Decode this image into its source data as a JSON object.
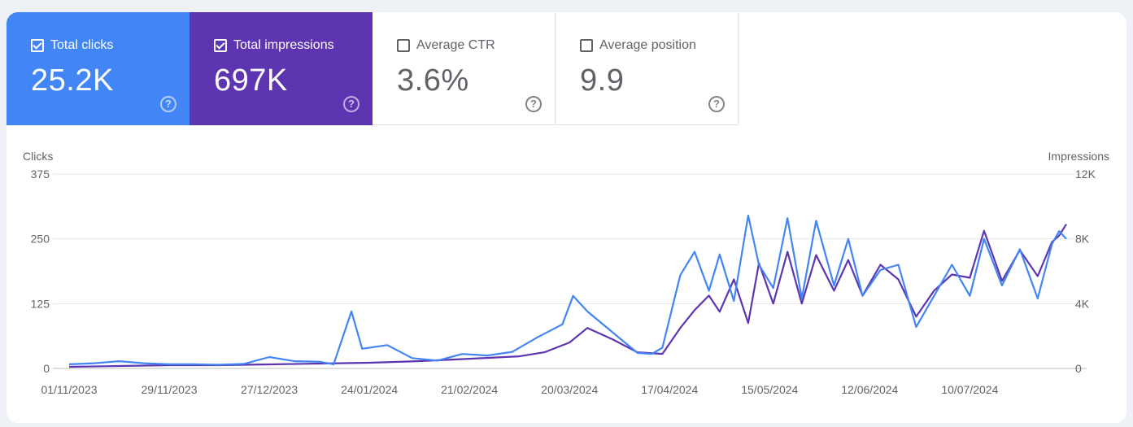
{
  "metrics": {
    "clicks": {
      "label": "Total clicks",
      "value": "25.2K",
      "checked": true
    },
    "impressions": {
      "label": "Total impressions",
      "value": "697K",
      "checked": true
    },
    "ctr": {
      "label": "Average CTR",
      "value": "3.6%",
      "checked": false
    },
    "position": {
      "label": "Average position",
      "value": "9.9",
      "checked": false
    }
  },
  "help_glyph": "?",
  "colors": {
    "clicks": "#4285f4",
    "impressions": "#5e35b1",
    "grid": "#e6e6e6",
    "text": "#5f6368"
  },
  "chart_data": {
    "type": "line",
    "title": "",
    "ylabel_left": "Clicks",
    "ylabel_right": "Impressions",
    "left_axis": {
      "ticks": [
        "0",
        "125",
        "250",
        "375"
      ],
      "values": [
        0,
        125,
        250,
        375
      ],
      "ylim": [
        0,
        375
      ]
    },
    "right_axis": {
      "ticks": [
        "0",
        "4K",
        "8K",
        "12K"
      ],
      "values": [
        0,
        4000,
        8000,
        12000
      ],
      "ylim": [
        0,
        12000
      ]
    },
    "x_ticks": [
      "01/11/2023",
      "29/11/2023",
      "27/12/2023",
      "24/01/2024",
      "21/02/2024",
      "20/03/2024",
      "17/04/2024",
      "15/05/2024",
      "12/06/2024",
      "10/07/2024"
    ],
    "x_start": "01/11/2023",
    "x_end": "06/08/2024",
    "grid": true,
    "series": [
      {
        "name": "Clicks",
        "axis": "left",
        "points": [
          [
            "01/11/2023",
            8
          ],
          [
            "08/11/2023",
            10
          ],
          [
            "15/11/2023",
            14
          ],
          [
            "22/11/2023",
            10
          ],
          [
            "29/11/2023",
            8
          ],
          [
            "06/12/2023",
            8
          ],
          [
            "13/12/2023",
            7
          ],
          [
            "20/12/2023",
            9
          ],
          [
            "27/12/2023",
            22
          ],
          [
            "03/01/2024",
            14
          ],
          [
            "10/01/2024",
            13
          ],
          [
            "14/01/2024",
            8
          ],
          [
            "19/01/2024",
            110
          ],
          [
            "22/01/2024",
            38
          ],
          [
            "29/01/2024",
            45
          ],
          [
            "05/02/2024",
            20
          ],
          [
            "12/02/2024",
            15
          ],
          [
            "19/02/2024",
            28
          ],
          [
            "26/02/2024",
            25
          ],
          [
            "04/03/2024",
            32
          ],
          [
            "11/03/2024",
            60
          ],
          [
            "18/03/2024",
            85
          ],
          [
            "21/03/2024",
            140
          ],
          [
            "25/03/2024",
            110
          ],
          [
            "01/04/2024",
            70
          ],
          [
            "08/04/2024",
            30
          ],
          [
            "12/04/2024",
            28
          ],
          [
            "15/04/2024",
            40
          ],
          [
            "20/04/2024",
            180
          ],
          [
            "24/04/2024",
            225
          ],
          [
            "28/04/2024",
            150
          ],
          [
            "01/05/2024",
            220
          ],
          [
            "05/05/2024",
            130
          ],
          [
            "09/05/2024",
            295
          ],
          [
            "12/05/2024",
            200
          ],
          [
            "16/05/2024",
            155
          ],
          [
            "20/05/2024",
            290
          ],
          [
            "24/05/2024",
            135
          ],
          [
            "28/05/2024",
            285
          ],
          [
            "02/06/2024",
            160
          ],
          [
            "06/06/2024",
            250
          ],
          [
            "10/06/2024",
            140
          ],
          [
            "15/06/2024",
            190
          ],
          [
            "20/06/2024",
            200
          ],
          [
            "25/06/2024",
            80
          ],
          [
            "30/06/2024",
            140
          ],
          [
            "05/07/2024",
            200
          ],
          [
            "10/07/2024",
            140
          ],
          [
            "14/07/2024",
            250
          ],
          [
            "19/07/2024",
            160
          ],
          [
            "24/07/2024",
            230
          ],
          [
            "29/07/2024",
            135
          ],
          [
            "02/08/2024",
            240
          ],
          [
            "04/08/2024",
            265
          ],
          [
            "06/08/2024",
            250
          ]
        ]
      },
      {
        "name": "Impressions",
        "axis": "right",
        "points": [
          [
            "01/11/2023",
            100
          ],
          [
            "15/11/2023",
            150
          ],
          [
            "29/11/2023",
            200
          ],
          [
            "13/12/2023",
            200
          ],
          [
            "27/12/2023",
            250
          ],
          [
            "10/01/2024",
            300
          ],
          [
            "24/01/2024",
            350
          ],
          [
            "07/02/2024",
            450
          ],
          [
            "21/02/2024",
            600
          ],
          [
            "06/03/2024",
            750
          ],
          [
            "13/03/2024",
            1000
          ],
          [
            "20/03/2024",
            1600
          ],
          [
            "25/03/2024",
            2500
          ],
          [
            "01/04/2024",
            1800
          ],
          [
            "08/04/2024",
            1000
          ],
          [
            "15/04/2024",
            900
          ],
          [
            "20/04/2024",
            2500
          ],
          [
            "24/04/2024",
            3600
          ],
          [
            "28/04/2024",
            4500
          ],
          [
            "01/05/2024",
            3500
          ],
          [
            "05/05/2024",
            5500
          ],
          [
            "09/05/2024",
            2800
          ],
          [
            "12/05/2024",
            6500
          ],
          [
            "16/05/2024",
            4000
          ],
          [
            "20/05/2024",
            7200
          ],
          [
            "24/05/2024",
            4000
          ],
          [
            "28/05/2024",
            7000
          ],
          [
            "02/06/2024",
            4800
          ],
          [
            "06/06/2024",
            6700
          ],
          [
            "10/06/2024",
            4500
          ],
          [
            "15/06/2024",
            6400
          ],
          [
            "20/06/2024",
            5500
          ],
          [
            "25/06/2024",
            3200
          ],
          [
            "30/06/2024",
            4800
          ],
          [
            "05/07/2024",
            5800
          ],
          [
            "10/07/2024",
            5600
          ],
          [
            "14/07/2024",
            8500
          ],
          [
            "19/07/2024",
            5400
          ],
          [
            "24/07/2024",
            7300
          ],
          [
            "29/07/2024",
            5700
          ],
          [
            "02/08/2024",
            7800
          ],
          [
            "04/08/2024",
            8200
          ],
          [
            "06/08/2024",
            8900
          ]
        ]
      }
    ]
  }
}
